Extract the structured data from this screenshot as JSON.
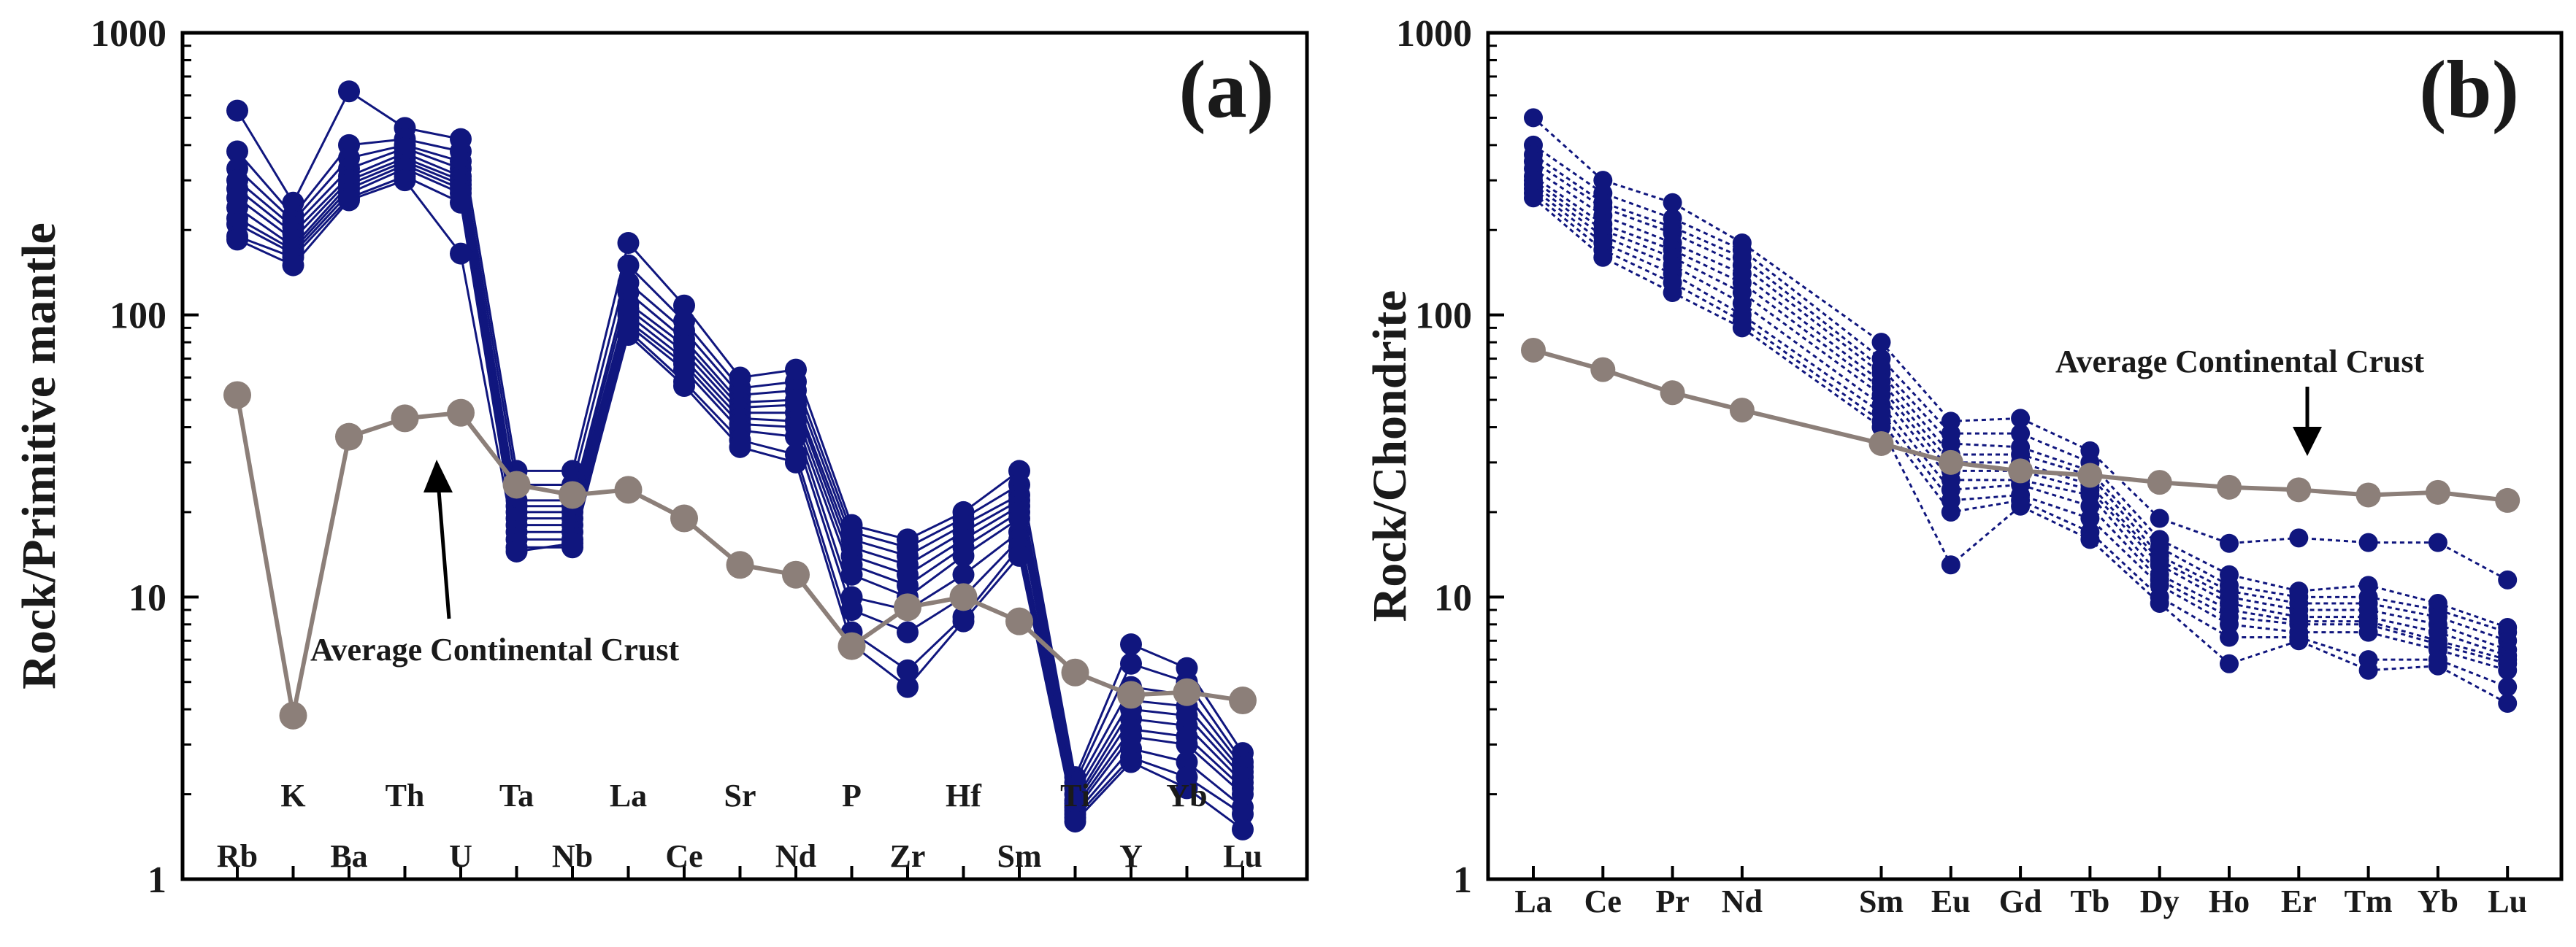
{
  "figure": {
    "panels": [
      {
        "id": "a",
        "panel_label": "(a)",
        "ylabel": "Rock/Primitive mantle",
        "annotation": "Average Continental Crust",
        "arrow_color": "#000000",
        "sample_color": "#10167e",
        "crust_color": "#8c7f79",
        "ylim": [
          1,
          1000
        ],
        "yscale": "log",
        "yticks": [
          "1",
          "10",
          "100",
          "1000"
        ],
        "categories": [
          "Rb",
          "K",
          "Ba",
          "Th",
          "U",
          "Ta",
          "Nb",
          "La",
          "Ce",
          "Sr",
          "Nd",
          "P",
          "Zr",
          "Hf",
          "Sm",
          "Ti",
          "Y",
          "Yb",
          "Lu"
        ],
        "category_rows": [
          "bottom",
          "top",
          "bottom",
          "top",
          "bottom",
          "top",
          "bottom",
          "top",
          "bottom",
          "top",
          "bottom",
          "top",
          "bottom",
          "top",
          "bottom",
          "top",
          "bottom",
          "top",
          "bottom"
        ]
      },
      {
        "id": "b",
        "panel_label": "(b)",
        "ylabel": "Rock/Chondrite",
        "annotation": "Average Continental Crust",
        "arrow_color": "#000000",
        "sample_color": "#10167e",
        "crust_color": "#8c7f79",
        "ylim": [
          1,
          1000
        ],
        "yscale": "log",
        "yticks": [
          "1",
          "10",
          "100",
          "1000"
        ],
        "categories": [
          "La",
          "Ce",
          "Pr",
          "Nd",
          "Sm",
          "Eu",
          "Gd",
          "Tb",
          "Dy",
          "Ho",
          "Er",
          "Tm",
          "Yb",
          "Lu"
        ],
        "category_positions": [
          0,
          1,
          2,
          3,
          5,
          6,
          7,
          8,
          9,
          10,
          11,
          12,
          13,
          14
        ]
      }
    ]
  },
  "chart_data": [
    {
      "type": "line",
      "title": "(a)",
      "xlabel": "",
      "ylabel": "Rock/Primitive mantle",
      "yscale": "log",
      "ylim": [
        1,
        1000
      ],
      "categories": [
        "Rb",
        "K",
        "Ba",
        "Th",
        "U",
        "Ta",
        "Nb",
        "La",
        "Ce",
        "Sr",
        "Nd",
        "P",
        "Zr",
        "Hf",
        "Sm",
        "Ti",
        "Y",
        "Yb",
        "Lu"
      ],
      "series": [
        {
          "values": [
            530,
            250,
            620,
            460,
            420,
            28,
            28,
            180,
            108,
            60,
            64,
            18,
            16,
            20,
            28,
            2.3,
            6.8,
            5.6,
            2.8
          ]
        },
        {
          "values": [
            380,
            225,
            400,
            420,
            380,
            25,
            25,
            150,
            95,
            55,
            58,
            17,
            15,
            19,
            25,
            2.2,
            5.8,
            5.0,
            2.6
          ]
        },
        {
          "values": [
            330,
            215,
            360,
            400,
            350,
            22,
            22,
            130,
            88,
            52,
            54,
            16,
            14,
            18,
            23,
            2.1,
            4.8,
            4.5,
            2.5
          ]
        },
        {
          "values": [
            300,
            205,
            330,
            390,
            330,
            21,
            21,
            120,
            82,
            49,
            50,
            15,
            13,
            17,
            22,
            2.0,
            4.3,
            4.1,
            2.4
          ]
        },
        {
          "values": [
            280,
            195,
            310,
            375,
            310,
            20,
            20,
            110,
            78,
            47,
            48,
            14,
            12,
            16,
            21,
            1.9,
            4.0,
            3.8,
            2.3
          ]
        },
        {
          "values": [
            260,
            185,
            300,
            360,
            300,
            19,
            19,
            105,
            74,
            45,
            45,
            13,
            11,
            15,
            20,
            1.85,
            3.7,
            3.5,
            2.2
          ]
        },
        {
          "values": [
            240,
            175,
            290,
            350,
            290,
            18,
            18,
            100,
            70,
            43,
            42,
            12,
            10,
            14,
            19,
            1.8,
            3.4,
            3.2,
            2.1
          ]
        },
        {
          "values": [
            220,
            170,
            280,
            340,
            280,
            17,
            17,
            95,
            67,
            41,
            40,
            10,
            9,
            12,
            17,
            1.75,
            3.2,
            3.0,
            2.0
          ]
        },
        {
          "values": [
            210,
            165,
            270,
            330,
            270,
            16,
            16,
            92,
            64,
            39,
            37,
            9,
            7.5,
            10,
            16,
            1.7,
            2.9,
            2.6,
            1.8
          ]
        },
        {
          "values": [
            190,
            160,
            260,
            310,
            250,
            15,
            15,
            88,
            58,
            36,
            32,
            7.5,
            5.5,
            8.5,
            15,
            1.65,
            2.7,
            2.3,
            1.7
          ]
        },
        {
          "values": [
            185,
            150,
            255,
            300,
            165,
            14.5,
            15.5,
            85,
            56,
            34,
            30,
            6.8,
            4.8,
            8.2,
            14,
            1.6,
            2.6,
            2.1,
            1.5
          ]
        }
      ],
      "reference_series": {
        "name": "Average Continental Crust",
        "values": [
          52,
          3.8,
          37,
          43,
          45,
          25,
          23,
          24,
          19,
          13,
          12,
          6.7,
          9.2,
          10,
          8.2,
          5.4,
          4.5,
          4.6,
          4.3
        ]
      }
    },
    {
      "type": "line",
      "title": "(b)",
      "xlabel": "",
      "ylabel": "Rock/Chondrite",
      "yscale": "log",
      "ylim": [
        1,
        1000
      ],
      "categories": [
        "La",
        "Ce",
        "Pr",
        "Nd",
        "Sm",
        "Eu",
        "Gd",
        "Tb",
        "Dy",
        "Ho",
        "Er",
        "Tm",
        "Yb",
        "Lu"
      ],
      "series": [
        {
          "values": [
            500,
            300,
            250,
            180,
            80,
            42,
            43,
            33,
            19,
            15.5,
            16.2,
            15.6,
            15.6,
            11.5
          ]
        },
        {
          "values": [
            400,
            270,
            220,
            170,
            70,
            38,
            38,
            30,
            16,
            12,
            10.5,
            11,
            9.5,
            7.8
          ]
        },
        {
          "values": [
            370,
            250,
            205,
            160,
            65,
            35,
            34,
            28,
            15,
            11,
            10,
            10,
            9,
            7.5
          ]
        },
        {
          "values": [
            350,
            240,
            195,
            150,
            62,
            32,
            32,
            27,
            14,
            10.5,
            9.5,
            9.5,
            8.5,
            7
          ]
        },
        {
          "values": [
            330,
            225,
            180,
            140,
            58,
            30,
            30,
            25,
            13.5,
            10,
            9,
            9,
            8,
            6.5
          ]
        },
        {
          "values": [
            310,
            210,
            170,
            130,
            55,
            28,
            28,
            24,
            13,
            9.5,
            8.5,
            8.5,
            7.5,
            6.2
          ]
        },
        {
          "values": [
            300,
            200,
            160,
            120,
            52,
            26,
            26,
            23,
            12,
            9,
            8.2,
            8.2,
            7,
            6
          ]
        },
        {
          "values": [
            290,
            190,
            150,
            110,
            48,
            24,
            25,
            21,
            11.5,
            8.5,
            8,
            8,
            6.8,
            5.8
          ]
        },
        {
          "values": [
            280,
            180,
            140,
            100,
            45,
            22,
            23,
            19,
            11,
            8,
            7.5,
            7.5,
            6.5,
            5.5
          ]
        },
        {
          "values": [
            270,
            170,
            130,
            95,
            42,
            20,
            22,
            17,
            10,
            7.2,
            7.2,
            6,
            6,
            4.8
          ]
        },
        {
          "values": [
            260,
            160,
            120,
            90,
            40,
            13,
            21,
            16,
            9.5,
            5.8,
            7,
            5.5,
            5.7,
            4.2
          ]
        }
      ],
      "reference_series": {
        "name": "Average Continental Crust",
        "values": [
          75,
          64,
          53,
          46,
          35,
          30,
          28,
          27,
          25.5,
          24.5,
          24,
          23,
          23.5,
          22
        ]
      }
    }
  ]
}
